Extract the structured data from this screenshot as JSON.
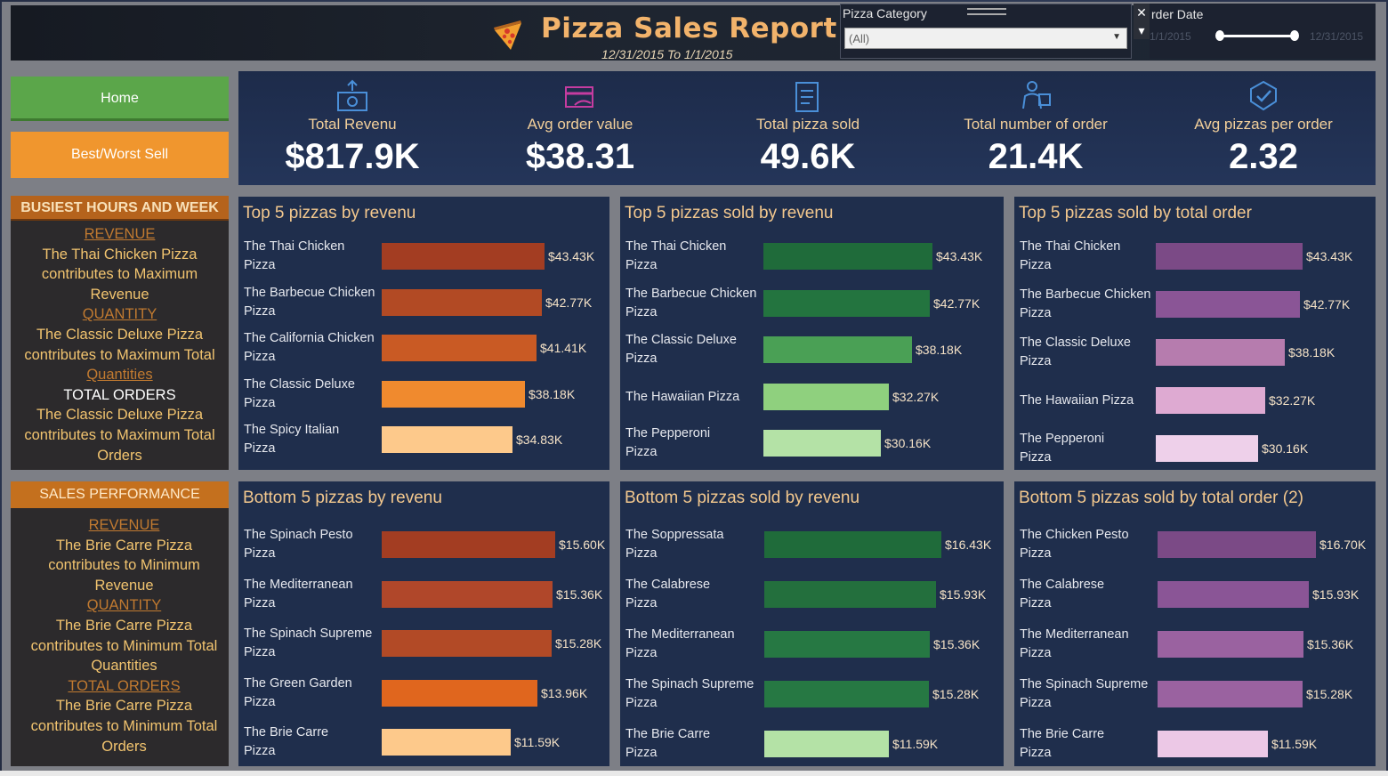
{
  "header": {
    "title": "Pizza Sales Report",
    "subtitle": "12/31/2015 To 1/1/2015",
    "category_filter": {
      "label": "Pizza Category",
      "selected": "(All)"
    },
    "date_filter": {
      "label": "rder Date",
      "start": "1/1/2015",
      "end": "12/31/2015"
    },
    "close_glyph": "✕",
    "menu_glyph": "▾"
  },
  "nav": {
    "home": "Home",
    "best_worst": "Best/Worst Sell"
  },
  "kpis": [
    {
      "label": "Total Revenu",
      "value": "$817.9K",
      "icon": "money-icon"
    },
    {
      "label": "Avg order value",
      "value": "$38.31",
      "icon": "card-icon"
    },
    {
      "label": "Total pizza sold",
      "value": "49.6K",
      "icon": "clipboard-icon"
    },
    {
      "label": "Total number of order",
      "value": "21.4K",
      "icon": "delivery-icon"
    },
    {
      "label": "Avg pizzas per order",
      "value": "2.32",
      "icon": "badge-icon"
    }
  ],
  "busiest": {
    "heading": "BUSIEST HOURS AND WEEK",
    "lines": [
      {
        "t": "REVENUE",
        "c": "u"
      },
      {
        "t": "The Thai Chicken Pizza contributes to Maximum Revenue",
        "c": ""
      },
      {
        "t": "QUANTITY",
        "c": "u"
      },
      {
        "t": "The Classic Deluxe Pizza contributes to Maximum Total",
        "c": ""
      },
      {
        "t": "Quantities",
        "c": "u"
      },
      {
        "t": "TOTAL ORDERS",
        "c": "w"
      },
      {
        "t": "The Classic Deluxe Pizza contributes to Maximum Total Orders",
        "c": ""
      }
    ]
  },
  "performance": {
    "heading": "SALES PERFORMANCE",
    "lines": [
      {
        "t": "REVENUE",
        "c": "u"
      },
      {
        "t": "The Brie Carre Pizza contributes to Minimum Revenue",
        "c": ""
      },
      {
        "t": "QUANTITY",
        "c": "u"
      },
      {
        "t": "The Brie Carre Pizza contributes to Minimum Total Quantities",
        "c": ""
      },
      {
        "t": "TOTAL ORDERS",
        "c": "u"
      },
      {
        "t": "The Brie Carre Pizza contributes to Minimum Total Orders",
        "c": ""
      }
    ]
  },
  "chart_data": [
    {
      "type": "bar",
      "title": "Top 5 pizzas by revenu",
      "categories": [
        "The Thai Chicken Pizza",
        "The Barbecue Chicken Pizza",
        "The California Chicken Pizza",
        "The Classic Deluxe Pizza",
        "The Spicy Italian Pizza"
      ],
      "values": [
        43.43,
        42.77,
        41.41,
        38.18,
        34.83
      ],
      "labels": [
        "$43.43K",
        "$42.77K",
        "$41.41K",
        "$38.18K",
        "$34.83K"
      ],
      "colors": [
        "#a33d22",
        "#b24a24",
        "#c95a24",
        "#f08a2e",
        "#fdc98b"
      ]
    },
    {
      "type": "bar",
      "title": "Top 5 pizzas sold by revenu",
      "categories": [
        "The Thai Chicken Pizza",
        "The Barbecue Chicken Pizza",
        "The Classic Deluxe Pizza",
        "The Hawaiian Pizza",
        "The Pepperoni Pizza"
      ],
      "values": [
        43.43,
        42.77,
        38.18,
        32.27,
        30.16
      ],
      "labels": [
        "$43.43K",
        "$42.77K",
        "$38.18K",
        "$32.27K",
        "$30.16K"
      ],
      "colors": [
        "#1f6b3a",
        "#23743f",
        "#4aa055",
        "#8fd07e",
        "#b4e2a6"
      ]
    },
    {
      "type": "bar",
      "title": "Top 5 pizzas sold by total order",
      "categories": [
        "The Thai Chicken Pizza",
        "The Barbecue Chicken Pizza",
        "The Classic Deluxe Pizza",
        "The Hawaiian Pizza",
        "The Pepperoni Pizza"
      ],
      "values": [
        43.43,
        42.77,
        38.18,
        32.27,
        30.16
      ],
      "labels": [
        "$43.43K",
        "$42.77K",
        "$38.18K",
        "$32.27K",
        "$30.16K"
      ],
      "colors": [
        "#7b4a86",
        "#8a5596",
        "#b67cae",
        "#deaad2",
        "#eed0ea"
      ]
    },
    {
      "type": "bar",
      "title": "Bottom 5 pizzas by revenu",
      "categories": [
        "The Spinach Pesto Pizza",
        "The Mediterranean Pizza",
        "The Spinach Supreme Pizza",
        "The Green Garden Pizza",
        "The Brie Carre Pizza"
      ],
      "values": [
        15.6,
        15.36,
        15.28,
        13.96,
        11.59
      ],
      "labels": [
        "$15.60K",
        "$15.36K",
        "$15.28K",
        "$13.96K",
        "$11.59K"
      ],
      "colors": [
        "#a33d22",
        "#b0472a",
        "#b24a26",
        "#e0661e",
        "#fdc98b"
      ]
    },
    {
      "type": "bar",
      "title": "Bottom 5 pizzas sold by revenu",
      "categories": [
        "The Soppressata Pizza",
        "The Calabrese Pizza",
        "The Mediterranean Pizza",
        "The Spinach Supreme Pizza",
        "The Brie Carre Pizza"
      ],
      "values": [
        16.43,
        15.93,
        15.36,
        15.28,
        11.59
      ],
      "labels": [
        "$16.43K",
        "$15.93K",
        "$15.36K",
        "$15.28K",
        "$11.59K"
      ],
      "colors": [
        "#1f6b3a",
        "#236f3d",
        "#267843",
        "#267843",
        "#b4e2a6"
      ]
    },
    {
      "type": "bar",
      "title": "Bottom 5 pizzas sold by total order (2)",
      "categories": [
        "The Chicken Pesto Pizza",
        "The Calabrese Pizza",
        "The Mediterranean Pizza",
        "The Spinach Supreme Pizza",
        "The Brie Carre Pizza"
      ],
      "values": [
        16.7,
        15.93,
        15.36,
        15.28,
        11.59
      ],
      "labels": [
        "$16.70K",
        "$15.93K",
        "$15.36K",
        "$15.28K",
        "$11.59K"
      ],
      "colors": [
        "#7b4a86",
        "#8a5596",
        "#9a62a0",
        "#9a62a0",
        "#ecc8e6"
      ]
    }
  ]
}
